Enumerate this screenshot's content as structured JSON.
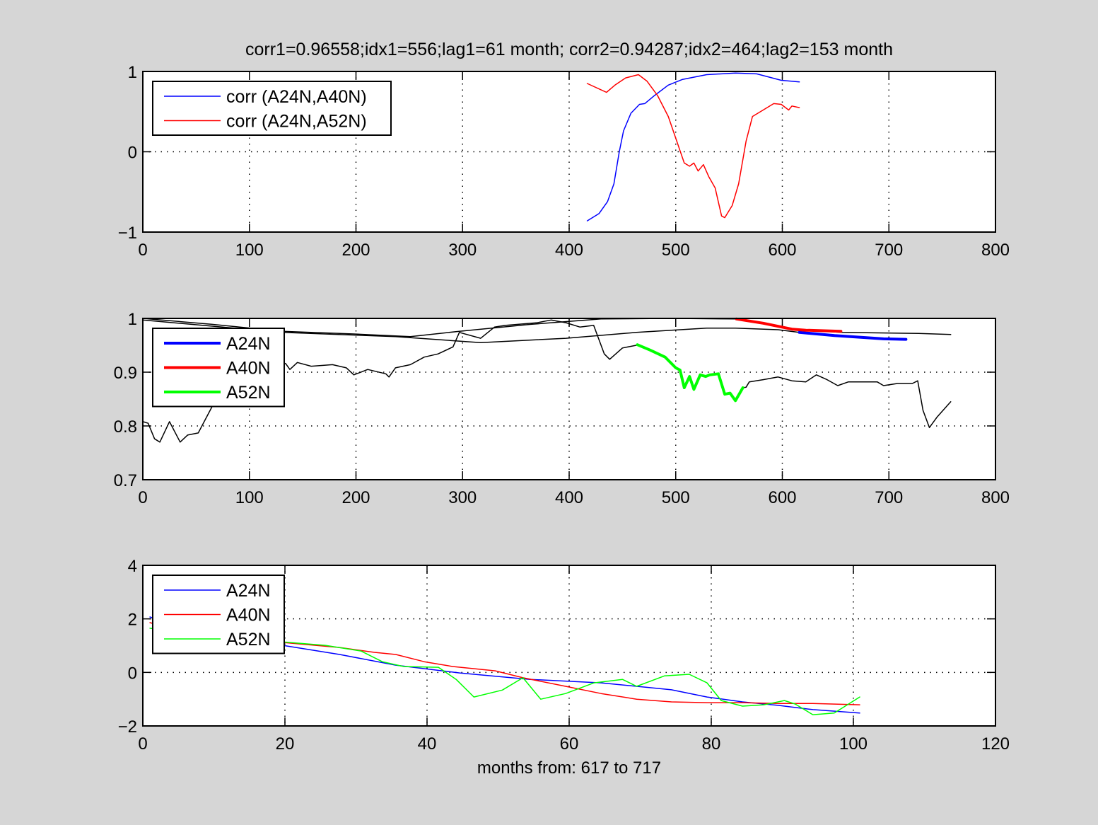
{
  "title": "corr1=0.96558;idx1=556;lag1=61 month;   corr2=0.94287;idx2=464;lag2=153 month",
  "colors": {
    "blue": "#0000ff",
    "red": "#ff0000",
    "green": "#00ff00",
    "black": "#000000",
    "figure_bg": "#d6d6d6"
  },
  "chart_data": [
    {
      "type": "line",
      "title": "corr1=0.96558;idx1=556;lag1=61 month;   corr2=0.94287;idx2=464;lag2=153 month",
      "xlim": [
        0,
        800
      ],
      "ylim": [
        -1,
        1
      ],
      "xticks": [
        "0",
        "100",
        "200",
        "300",
        "400",
        "500",
        "600",
        "700",
        "800"
      ],
      "yticks": [
        "-1",
        "0",
        "1"
      ],
      "grid": true,
      "legend_position": "top-left",
      "series": [
        {
          "name": "corr (A24N,A40N)",
          "color": "#0000ff",
          "width": 1.5,
          "x": [
            417,
            428,
            436,
            442,
            447,
            451,
            458,
            466,
            471,
            480,
            493,
            506,
            529,
            556,
            576,
            599,
            616
          ],
          "y": [
            -0.86,
            -0.77,
            -0.62,
            -0.4,
            0.0,
            0.26,
            0.48,
            0.59,
            0.6,
            0.7,
            0.83,
            0.9,
            0.96,
            0.98,
            0.97,
            0.89,
            0.87
          ]
        },
        {
          "name": "corr (A24N,A52N)",
          "color": "#ff0000",
          "width": 1.5,
          "x": [
            417,
            435,
            443,
            453,
            465,
            473,
            483,
            493,
            501,
            508,
            513,
            517,
            521,
            526,
            531,
            537,
            543,
            546,
            553,
            559,
            566,
            572,
            582,
            592,
            599,
            606,
            609,
            616
          ],
          "y": [
            0.85,
            0.74,
            0.83,
            0.92,
            0.96,
            0.88,
            0.7,
            0.44,
            0.13,
            -0.14,
            -0.18,
            -0.14,
            -0.24,
            -0.16,
            -0.31,
            -0.45,
            -0.8,
            -0.82,
            -0.67,
            -0.4,
            0.13,
            0.44,
            0.52,
            0.6,
            0.59,
            0.52,
            0.57,
            0.55
          ]
        }
      ]
    },
    {
      "type": "line",
      "xlim": [
        0,
        800
      ],
      "ylim": [
        0.7,
        1
      ],
      "xticks": [
        "0",
        "100",
        "200",
        "300",
        "400",
        "500",
        "600",
        "700",
        "800"
      ],
      "yticks": [
        "0.7",
        "0.8",
        "0.9",
        "1"
      ],
      "grid": true,
      "legend_position": "top-left",
      "series": [
        {
          "name": "",
          "color": "#000000",
          "width": 1.5,
          "x": [
            0,
            65,
            131,
            198,
            251,
            297,
            364,
            430,
            496,
            556,
            616,
            655,
            728,
            758
          ],
          "y": [
            1.0,
            0.989,
            0.976,
            0.971,
            0.966,
            0.976,
            0.989,
            0.999,
            1.0,
            0.999,
            0.979,
            0.974,
            0.972,
            0.97
          ]
        },
        {
          "name": "",
          "color": "#000000",
          "width": 1.5,
          "x": [
            0,
            131,
            237,
            317,
            397,
            463,
            529,
            556,
            596,
            616
          ],
          "y": [
            0.997,
            0.974,
            0.966,
            0.955,
            0.963,
            0.974,
            0.982,
            0.982,
            0.979,
            0.974
          ]
        },
        {
          "name": "",
          "color": "#000000",
          "width": 1.5,
          "x": [
            0,
            5,
            11,
            16,
            25,
            35,
            42,
            52,
            65,
            72,
            85,
            98,
            111,
            125,
            134,
            138,
            145,
            158,
            178,
            191,
            198,
            211,
            228,
            231,
            237,
            251,
            264,
            277,
            291,
            297,
            317,
            330,
            340,
            370,
            383,
            397,
            410,
            423,
            433,
            438,
            450,
            463
          ],
          "y": [
            0.808,
            0.805,
            0.776,
            0.77,
            0.808,
            0.77,
            0.783,
            0.787,
            0.836,
            0.888,
            0.908,
            0.918,
            0.914,
            0.918,
            0.916,
            0.905,
            0.918,
            0.911,
            0.914,
            0.908,
            0.895,
            0.905,
            0.897,
            0.891,
            0.908,
            0.914,
            0.928,
            0.934,
            0.947,
            0.974,
            0.963,
            0.984,
            0.987,
            0.992,
            0.997,
            0.992,
            0.984,
            0.987,
            0.934,
            0.924,
            0.945,
            0.95
          ]
        },
        {
          "name": "",
          "color": "#000000",
          "width": 1.5,
          "x": [
            563,
            566,
            569,
            582,
            596,
            609,
            622,
            632,
            642,
            652,
            662,
            689,
            695,
            708,
            722,
            727,
            732,
            738,
            745,
            758
          ],
          "y": [
            0.871,
            0.872,
            0.882,
            0.886,
            0.891,
            0.884,
            0.882,
            0.895,
            0.886,
            0.875,
            0.882,
            0.882,
            0.875,
            0.879,
            0.879,
            0.884,
            0.829,
            0.797,
            0.816,
            0.845
          ]
        },
        {
          "name": "A24N",
          "color": "#0000ff",
          "width": 4,
          "x": [
            616,
            649,
            695,
            716
          ],
          "y": [
            0.974,
            0.968,
            0.962,
            0.961
          ]
        },
        {
          "name": "A40N",
          "color": "#ff0000",
          "width": 4,
          "x": [
            557,
            582,
            609,
            622,
            655
          ],
          "y": [
            0.999,
            0.991,
            0.98,
            0.978,
            0.976
          ]
        },
        {
          "name": "A52N",
          "color": "#00ff00",
          "width": 4,
          "x": [
            464,
            476,
            490,
            500,
            504,
            508,
            513,
            517,
            523,
            528,
            532,
            540,
            546,
            551,
            556,
            563
          ],
          "y": [
            0.951,
            0.941,
            0.928,
            0.908,
            0.904,
            0.871,
            0.892,
            0.868,
            0.895,
            0.892,
            0.895,
            0.897,
            0.859,
            0.861,
            0.847,
            0.871
          ]
        }
      ]
    },
    {
      "type": "line",
      "xlim": [
        0,
        120
      ],
      "ylim": [
        -2,
        4
      ],
      "xticks": [
        "0",
        "20",
        "40",
        "60",
        "80",
        "100",
        "120"
      ],
      "yticks": [
        "-2",
        "0",
        "2",
        "4"
      ],
      "xlabel": "months from: 617 to 717",
      "grid": true,
      "legend_position": "top-left",
      "series": [
        {
          "name": "A24N",
          "color": "#0000ff",
          "width": 1.5,
          "x": [
            1,
            9.8,
            19.7,
            27.7,
            35.6,
            44.6,
            54.5,
            64.5,
            69.5,
            74.4,
            79.4,
            84.4,
            89.4,
            94.3,
            100.9
          ],
          "y": [
            2.07,
            1.2,
            1.01,
            0.67,
            0.27,
            -0.02,
            -0.26,
            -0.39,
            -0.52,
            -0.65,
            -0.92,
            -1.1,
            -1.23,
            -1.39,
            -1.52
          ]
        },
        {
          "name": "A40N",
          "color": "#ff0000",
          "width": 1.5,
          "x": [
            1,
            9.8,
            19.7,
            27.7,
            32.6,
            35.6,
            39.6,
            43.6,
            49.6,
            53.5,
            59.5,
            64.5,
            69.5,
            74.4,
            79.4,
            84.4,
            89.4,
            94.3,
            100.9
          ],
          "y": [
            1.86,
            1.2,
            1.12,
            0.93,
            0.75,
            0.67,
            0.4,
            0.22,
            0.06,
            -0.2,
            -0.52,
            -0.79,
            -1.0,
            -1.1,
            -1.13,
            -1.13,
            -1.16,
            -1.16,
            -1.21
          ]
        },
        {
          "name": "A52N",
          "color": "#00ff00",
          "width": 1.5,
          "x": [
            1,
            9.8,
            19.7,
            25.7,
            30.7,
            33.7,
            36.7,
            41.6,
            44.1,
            46.6,
            50.6,
            53.5,
            56.0,
            59.5,
            63.5,
            67.5,
            69.5,
            73.4,
            76.9,
            79.4,
            81.4,
            84.4,
            87.4,
            90.3,
            91.8,
            94.3,
            97.3,
            100.9
          ],
          "y": [
            1.65,
            1.25,
            1.14,
            1.01,
            0.8,
            0.4,
            0.22,
            0.19,
            -0.26,
            -0.92,
            -0.66,
            -0.2,
            -1.0,
            -0.79,
            -0.39,
            -0.26,
            -0.52,
            -0.13,
            -0.07,
            -0.39,
            -1.05,
            -1.26,
            -1.21,
            -1.05,
            -1.18,
            -1.58,
            -1.52,
            -0.92
          ]
        }
      ]
    }
  ]
}
